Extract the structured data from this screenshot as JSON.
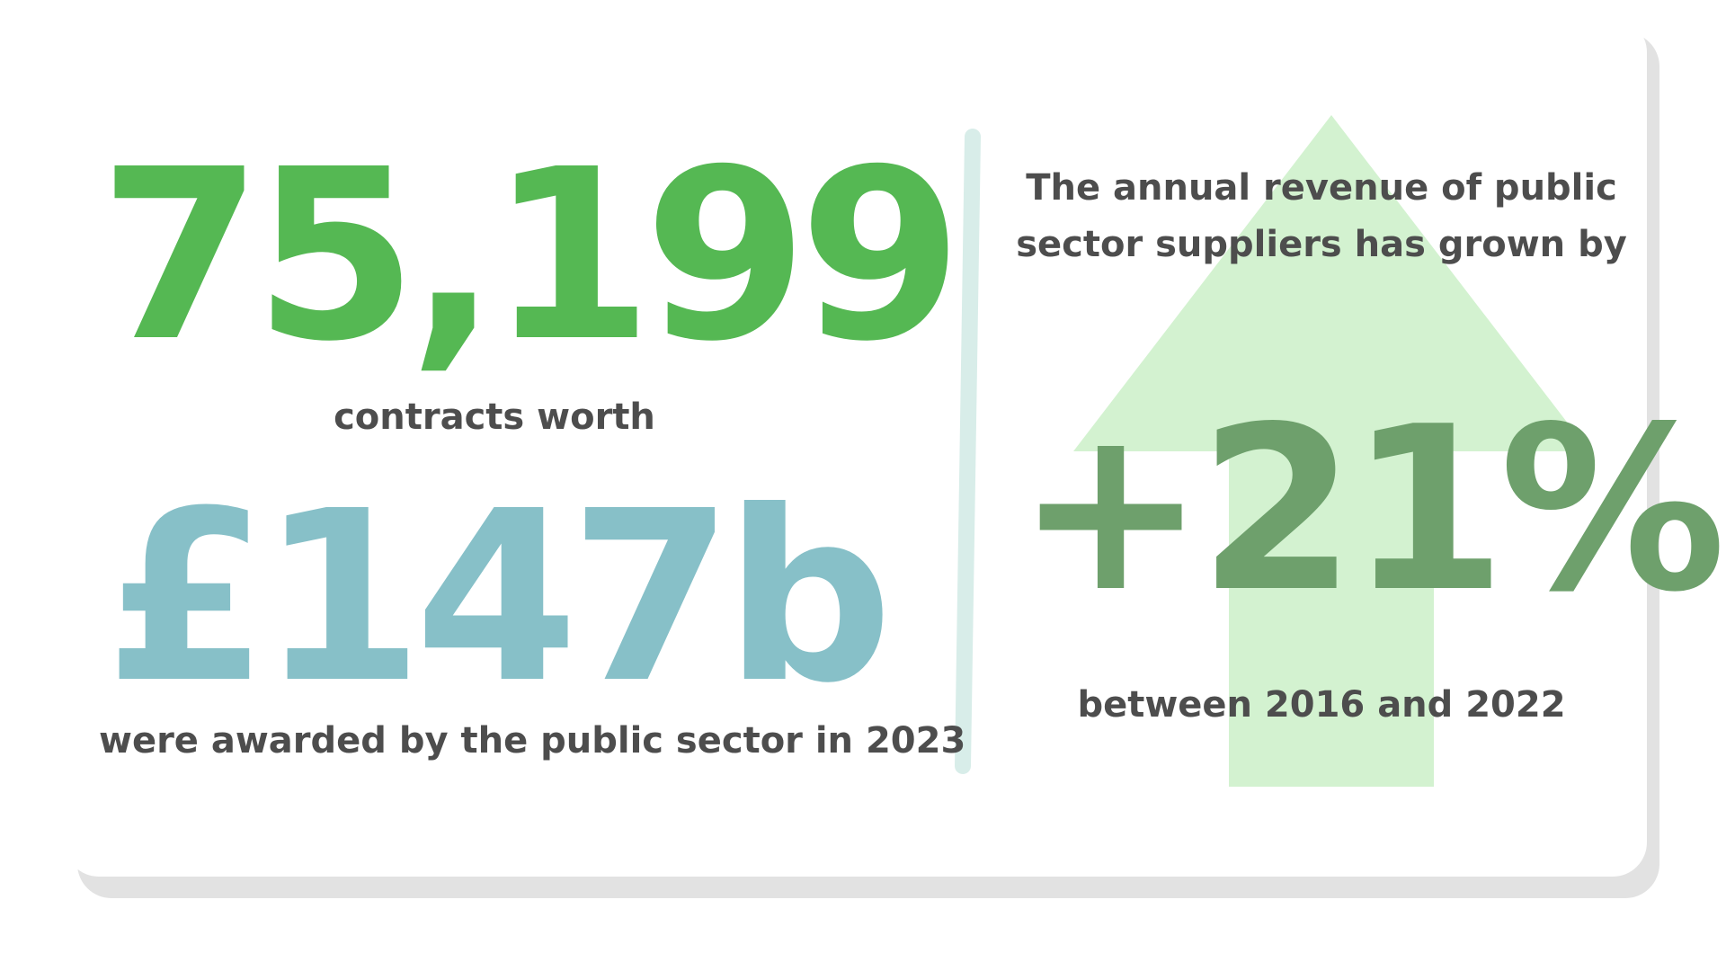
{
  "colors": {
    "green": "#55b853",
    "teal": "#87c0c8",
    "dark_green": "#6ea06c",
    "arrow": "#d3f2d0",
    "divider": "#d8ede9",
    "text": "#4d4d4d"
  },
  "left": {
    "contracts_count": "75,199",
    "contracts_caption": "contracts worth",
    "contracts_value": "£147b",
    "awarded_caption": "were awarded by the public sector in 2023"
  },
  "right": {
    "revenue_caption": "The annual revenue of public sector suppliers has grown by",
    "growth_percent": "+21%",
    "period_caption": "between 2016 and 2022",
    "arrow_icon": "up-arrow-icon"
  }
}
